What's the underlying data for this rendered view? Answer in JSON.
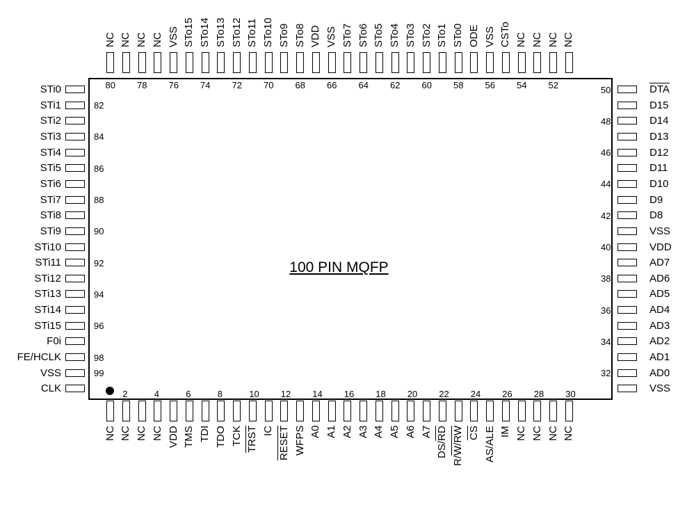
{
  "title": "100 PIN MQFP",
  "pins": {
    "top": [
      {
        "num": "80",
        "label": "NC"
      },
      {
        "num": "",
        "label": "NC"
      },
      {
        "num": "78",
        "label": "NC"
      },
      {
        "num": "",
        "label": "NC"
      },
      {
        "num": "76",
        "label": "VSS"
      },
      {
        "num": "",
        "label": "STo15"
      },
      {
        "num": "74",
        "label": "STo14"
      },
      {
        "num": "",
        "label": "STo13"
      },
      {
        "num": "72",
        "label": "STo12"
      },
      {
        "num": "",
        "label": "STo11"
      },
      {
        "num": "70",
        "label": "STo10"
      },
      {
        "num": "",
        "label": "STo9"
      },
      {
        "num": "68",
        "label": "STo8"
      },
      {
        "num": "",
        "label": "VDD"
      },
      {
        "num": "66",
        "label": "VSS"
      },
      {
        "num": "",
        "label": "STo7"
      },
      {
        "num": "64",
        "label": "STo6"
      },
      {
        "num": "",
        "label": "STo5"
      },
      {
        "num": "62",
        "label": "STo4"
      },
      {
        "num": "",
        "label": "STo3"
      },
      {
        "num": "60",
        "label": "STo2"
      },
      {
        "num": "",
        "label": "STo1"
      },
      {
        "num": "58",
        "label": "STo0"
      },
      {
        "num": "",
        "label": "ODE"
      },
      {
        "num": "56",
        "label": "VSS"
      },
      {
        "num": "",
        "label": "CSTo"
      },
      {
        "num": "54",
        "label": "NC"
      },
      {
        "num": "",
        "label": "NC"
      },
      {
        "num": "52",
        "label": "NC"
      },
      {
        "num": "",
        "label": "NC"
      }
    ],
    "bottom": [
      {
        "num": "",
        "label": "NC"
      },
      {
        "num": "2",
        "label": "NC"
      },
      {
        "num": "",
        "label": "NC"
      },
      {
        "num": "4",
        "label": "NC"
      },
      {
        "num": "",
        "label": "VDD"
      },
      {
        "num": "6",
        "label": "TMS"
      },
      {
        "num": "",
        "label": "TDI"
      },
      {
        "num": "8",
        "label": "TDO"
      },
      {
        "num": "",
        "label": "TCK"
      },
      {
        "num": "10",
        "label": "TRST",
        "overline": true
      },
      {
        "num": "",
        "label": "IC"
      },
      {
        "num": "12",
        "label": "RESET",
        "overline": true
      },
      {
        "num": "",
        "label": "WFPS"
      },
      {
        "num": "14",
        "label": "A0"
      },
      {
        "num": "",
        "label": "A1"
      },
      {
        "num": "16",
        "label": "A2"
      },
      {
        "num": "",
        "label": "A3"
      },
      {
        "num": "18",
        "label": "A4"
      },
      {
        "num": "",
        "label": "A5"
      },
      {
        "num": "20",
        "label": "A6"
      },
      {
        "num": "",
        "label": "A7"
      },
      {
        "num": "22",
        "label": "DS/RD",
        "overline_part": "RD"
      },
      {
        "num": "",
        "label": "R/W/RW",
        "overline_part": "W/RW"
      },
      {
        "num": "24",
        "label": "CS",
        "overline": true
      },
      {
        "num": "",
        "label": "AS/ALE"
      },
      {
        "num": "26",
        "label": "IM"
      },
      {
        "num": "",
        "label": "NC"
      },
      {
        "num": "28",
        "label": "NC"
      },
      {
        "num": "",
        "label": "NC"
      },
      {
        "num": "30",
        "label": "NC"
      }
    ],
    "left": [
      {
        "num": "",
        "label": "STi0"
      },
      {
        "num": "82",
        "label": "STi1"
      },
      {
        "num": "",
        "label": "STi2"
      },
      {
        "num": "84",
        "label": "STi3"
      },
      {
        "num": "",
        "label": "STi4"
      },
      {
        "num": "86",
        "label": "STi5"
      },
      {
        "num": "",
        "label": "STi6"
      },
      {
        "num": "88",
        "label": "STi7"
      },
      {
        "num": "",
        "label": "STi8"
      },
      {
        "num": "90",
        "label": "STi9"
      },
      {
        "num": "",
        "label": "STi10"
      },
      {
        "num": "92",
        "label": "STi11"
      },
      {
        "num": "",
        "label": "STi12"
      },
      {
        "num": "94",
        "label": "STi13"
      },
      {
        "num": "",
        "label": "STi14"
      },
      {
        "num": "96",
        "label": "STi15"
      },
      {
        "num": "",
        "label": "F0i"
      },
      {
        "num": "98",
        "label": "FE/HCLK"
      },
      {
        "num": "99",
        "label": "VSS"
      },
      {
        "num": "",
        "label": "CLK"
      }
    ],
    "right": [
      {
        "num": "50",
        "label": "DTA",
        "overline": true
      },
      {
        "num": "",
        "label": "D15"
      },
      {
        "num": "48",
        "label": "D14"
      },
      {
        "num": "",
        "label": "D13"
      },
      {
        "num": "46",
        "label": "D12"
      },
      {
        "num": "",
        "label": "D11"
      },
      {
        "num": "44",
        "label": "D10"
      },
      {
        "num": "",
        "label": "D9"
      },
      {
        "num": "42",
        "label": "D8"
      },
      {
        "num": "",
        "label": "VSS"
      },
      {
        "num": "40",
        "label": "VDD"
      },
      {
        "num": "",
        "label": "AD7"
      },
      {
        "num": "38",
        "label": "AD6"
      },
      {
        "num": "",
        "label": "AD5"
      },
      {
        "num": "36",
        "label": "AD4"
      },
      {
        "num": "",
        "label": "AD3"
      },
      {
        "num": "34",
        "label": "AD2"
      },
      {
        "num": "",
        "label": "AD1"
      },
      {
        "num": "32",
        "label": "AD0"
      },
      {
        "num": "",
        "label": "VSS"
      }
    ]
  }
}
